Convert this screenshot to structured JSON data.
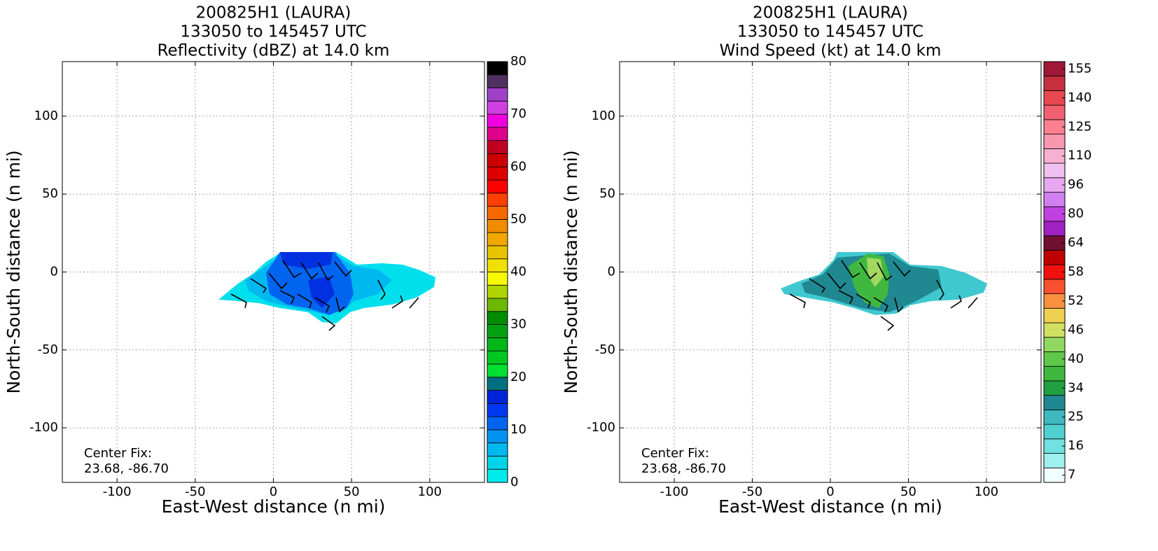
{
  "chart_data": [
    {
      "type": "heatmap",
      "title": "200825H1 (LAURA)",
      "subtitle": [
        "133050 to 145457 UTC",
        "Reflectivity (dBZ) at 14.0 km"
      ],
      "x_label": "East-West distance (n mi)",
      "y_label": "North-South distance (n mi)",
      "xlim": [
        -135,
        135
      ],
      "xticks": [
        -100,
        -50,
        0,
        50,
        100
      ],
      "ylim": [
        -135,
        135
      ],
      "yticks": [
        -100,
        -50,
        0,
        50,
        100
      ],
      "grid": true,
      "annotation": [
        "Center Fix:",
        "23.68, -86.70"
      ],
      "colorbar": {
        "clim": [
          0,
          80
        ],
        "ticks": [
          0,
          10,
          20,
          30,
          40,
          50,
          60,
          70,
          80
        ],
        "colors": [
          "#00ecec",
          "#00d4e8",
          "#00b8f0",
          "#0094f0",
          "#0064f0",
          "#0038f0",
          "#0024d8",
          "#007080",
          "#00e030",
          "#00c820",
          "#00b818",
          "#00a010",
          "#008c00",
          "#6cb800",
          "#b0d400",
          "#f8f800",
          "#f0e000",
          "#e8c400",
          "#f0a800",
          "#f08c00",
          "#f86800",
          "#ff4000",
          "#ff0000",
          "#dd0000",
          "#cc0000",
          "#c00020",
          "#e0008c",
          "#f000e0",
          "#d040e0",
          "#a040c8",
          "#503060",
          "#000000"
        ]
      }
    },
    {
      "type": "heatmap",
      "title": "200825H1 (LAURA)",
      "subtitle": [
        "133050 to 145457 UTC",
        "Wind Speed (kt) at 14.0 km"
      ],
      "x_label": "East-West distance (n mi)",
      "y_label": "North-South distance (n mi)",
      "xlim": [
        -135,
        135
      ],
      "xticks": [
        -100,
        -50,
        0,
        50,
        100
      ],
      "ylim": [
        -135,
        135
      ],
      "yticks": [
        -100,
        -50,
        0,
        50,
        100
      ],
      "grid": true,
      "annotation": [
        "Center Fix:",
        "23.68, -86.70"
      ],
      "colorbar": {
        "levels": [
          7,
          11,
          16,
          20,
          25,
          30,
          34,
          37,
          40,
          43,
          46,
          49,
          52,
          55,
          58,
          61,
          64,
          72,
          80,
          88,
          96,
          103,
          110,
          118,
          125,
          133,
          140,
          148,
          155
        ],
        "ticks": [
          7,
          16,
          25,
          34,
          40,
          46,
          52,
          58,
          64,
          80,
          96,
          110,
          125,
          140,
          155
        ],
        "colors": [
          "#f0ffff",
          "#a0f0f0",
          "#70e0e0",
          "#50d0d0",
          "#40b8c0",
          "#208890",
          "#20a040",
          "#40b840",
          "#60c848",
          "#90d860",
          "#d0e060",
          "#f0d050",
          "#f89040",
          "#f85030",
          "#f01010",
          "#c00000",
          "#701030",
          "#a020c0",
          "#c040e0",
          "#d080f0",
          "#e8a8f0",
          "#f0c0f0",
          "#f8b0d0",
          "#f898b0",
          "#f88090",
          "#f06070",
          "#e84850",
          "#c83040",
          "#a01838"
        ]
      }
    }
  ]
}
